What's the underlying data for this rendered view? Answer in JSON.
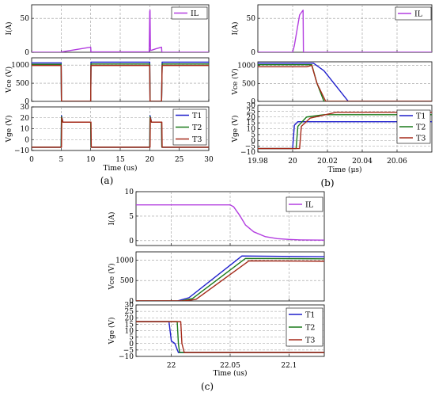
{
  "colors": {
    "IL": "#b33ee0",
    "T1": "#1f1fcc",
    "T2": "#1a7a1a",
    "T3": "#a52a1a",
    "grid": "#9a9a9a"
  },
  "chart_data": [
    {
      "type": "line",
      "caption": "(a)",
      "xlabel": "Time (us)",
      "xlim": [
        0,
        30
      ],
      "xticks": [
        0,
        5,
        10,
        15,
        20,
        25,
        30
      ],
      "grid": true,
      "panels": [
        {
          "ylabel": "I(A)",
          "ylim": [
            0,
            70
          ],
          "yticks": [
            0,
            50
          ],
          "legend": [
            "IL"
          ],
          "series": [
            {
              "name": "IL",
              "x": [
                0,
                5,
                5.05,
                10,
                10.05,
                19.9,
                20,
                20.05,
                20.12,
                20.3,
                21,
                22,
                22.05,
                30
              ],
              "y": [
                0,
                0,
                0.5,
                7.5,
                0.5,
                0.5,
                60,
                62,
                3,
                3,
                5,
                7.5,
                0,
                0
              ]
            }
          ]
        },
        {
          "ylabel": "Vce (V)",
          "ylim": [
            0,
            1200
          ],
          "yticks": [
            0,
            500,
            1000
          ],
          "series": [
            {
              "name": "T1",
              "x": [
                0,
                5,
                5.05,
                10,
                10.05,
                20,
                20.05,
                22,
                22.1,
                30
              ],
              "y": [
                1060,
                1060,
                0,
                0,
                1080,
                1080,
                0,
                0,
                1080,
                1080
              ]
            },
            {
              "name": "T2",
              "x": [
                0,
                5,
                5.05,
                10,
                10.05,
                20,
                20.05,
                22,
                22.1,
                30
              ],
              "y": [
                1020,
                1020,
                0,
                0,
                1030,
                1030,
                0,
                0,
                1030,
                1030
              ]
            },
            {
              "name": "T3",
              "x": [
                0,
                5,
                5.05,
                10,
                10.05,
                20,
                20.05,
                22,
                22.1,
                30
              ],
              "y": [
                990,
                990,
                0,
                0,
                990,
                990,
                0,
                0,
                990,
                990
              ]
            }
          ]
        },
        {
          "ylabel": "Vge (V)",
          "ylim": [
            -10,
            30
          ],
          "yticks": [
            -10,
            0,
            10,
            20,
            30
          ],
          "legend": [
            "T1",
            "T2",
            "T3"
          ],
          "series": [
            {
              "name": "T1",
              "x": [
                0,
                5,
                5.05,
                5.3,
                10,
                10.05,
                20,
                20.05,
                20.3,
                22,
                22.05,
                30
              ],
              "y": [
                -7,
                -7,
                22,
                16,
                16,
                -7,
                -7,
                22,
                16,
                16,
                -7,
                -7
              ]
            },
            {
              "name": "T2",
              "x": [
                0,
                5,
                5.05,
                5.3,
                10,
                10.05,
                20,
                20.05,
                20.3,
                22,
                22.05,
                30
              ],
              "y": [
                -7,
                -7,
                21,
                16,
                16,
                -7,
                -7,
                21,
                16,
                16,
                -7,
                -7
              ]
            },
            {
              "name": "T3",
              "x": [
                0,
                5.05,
                5.1,
                5.3,
                10.05,
                10.1,
                20.05,
                20.1,
                20.3,
                22.05,
                22.1,
                30
              ],
              "y": [
                -7,
                -7,
                20,
                16,
                16,
                -7,
                -7,
                20,
                16,
                16,
                -7,
                -7
              ]
            }
          ]
        }
      ]
    },
    {
      "type": "line",
      "caption": "(b)",
      "xlabel": "Time (μs)",
      "xlim": [
        19.98,
        20.08
      ],
      "xticks": [
        19.98,
        20,
        20.02,
        20.04,
        20.06
      ],
      "grid": true,
      "panels": [
        {
          "ylabel": "I(A)",
          "ylim": [
            0,
            70
          ],
          "yticks": [
            0,
            50
          ],
          "legend": [
            "IL"
          ],
          "series": [
            {
              "name": "IL",
              "x": [
                19.98,
                20.0,
                20.001,
                20.004,
                20.006,
                20.0062,
                20.08
              ],
              "y": [
                0,
                0,
                10,
                55,
                62,
                0,
                0
              ]
            }
          ]
        },
        {
          "ylabel": "Vce (V)",
          "ylim": [
            0,
            1100
          ],
          "yticks": [
            0,
            500,
            1000
          ],
          "series": [
            {
              "name": "T1",
              "x": [
                19.98,
                20.0,
                20.012,
                20.018,
                20.032,
                20.08
              ],
              "y": [
                1060,
                1060,
                1060,
                850,
                0,
                0
              ]
            },
            {
              "name": "T2",
              "x": [
                19.98,
                20.005,
                20.011,
                20.014,
                20.018,
                20.08
              ],
              "y": [
                1020,
                1020,
                1020,
                500,
                0,
                0
              ]
            },
            {
              "name": "T3",
              "x": [
                19.98,
                20.008,
                20.011,
                20.014,
                20.019,
                20.08
              ],
              "y": [
                960,
                960,
                1000,
                500,
                0,
                0
              ]
            }
          ]
        },
        {
          "ylabel": "Vge (V)",
          "ylim": [
            -10,
            30
          ],
          "yticks": [
            -10,
            -5,
            0,
            5,
            10,
            15,
            20,
            25,
            30
          ],
          "legend": [
            "T1",
            "T2",
            "T3"
          ],
          "series": [
            {
              "name": "T1",
              "x": [
                19.98,
                20.0,
                20.001,
                20.003,
                20.08
              ],
              "y": [
                -7,
                -7,
                13,
                16,
                16
              ]
            },
            {
              "name": "T2",
              "x": [
                19.98,
                20.002,
                20.003,
                20.008,
                20.018,
                20.08
              ],
              "y": [
                -7,
                -7,
                12,
                20,
                22,
                22
              ]
            },
            {
              "name": "T3",
              "x": [
                19.98,
                20.004,
                20.005,
                20.01,
                20.025,
                20.08
              ],
              "y": [
                -7,
                -7,
                12,
                19,
                24,
                24
              ]
            }
          ]
        }
      ]
    },
    {
      "type": "line",
      "caption": "(c)",
      "xlabel": "Time (us)",
      "xlim": [
        21.97,
        22.13
      ],
      "xticks": [
        22,
        22.05,
        22.1
      ],
      "grid": true,
      "panels": [
        {
          "ylabel": "I(A)",
          "ylim": [
            -1,
            10
          ],
          "yticks": [
            0,
            5,
            10
          ],
          "legend": [
            "IL"
          ],
          "series": [
            {
              "name": "IL",
              "x": [
                21.97,
                22.05,
                22.053,
                22.058,
                22.063,
                22.07,
                22.08,
                22.09,
                22.1,
                22.11,
                22.13
              ],
              "y": [
                7.3,
                7.3,
                6.9,
                5.2,
                3.2,
                1.8,
                0.8,
                0.4,
                0.25,
                0.15,
                0.1
              ]
            }
          ]
        },
        {
          "ylabel": "Vce (V)",
          "ylim": [
            0,
            1200
          ],
          "yticks": [
            0,
            500,
            1000
          ],
          "series": [
            {
              "name": "T1",
              "x": [
                21.97,
                22.005,
                22.015,
                22.06,
                22.13
              ],
              "y": [
                0,
                0,
                80,
                1100,
                1080
              ]
            },
            {
              "name": "T2",
              "x": [
                21.97,
                22.008,
                22.018,
                22.063,
                22.13
              ],
              "y": [
                0,
                0,
                60,
                1040,
                1030
              ]
            },
            {
              "name": "T3",
              "x": [
                21.97,
                22.011,
                22.021,
                22.066,
                22.13
              ],
              "y": [
                0,
                0,
                40,
                980,
                970
              ]
            }
          ]
        },
        {
          "ylabel": "Vge (V)",
          "ylim": [
            -10,
            30
          ],
          "yticks": [
            -10,
            -5,
            0,
            5,
            10,
            15,
            20,
            25,
            30
          ],
          "legend": [
            "T1",
            "T2",
            "T3"
          ],
          "series": [
            {
              "name": "T1",
              "x": [
                21.97,
                21.998,
                22.0,
                22.003,
                22.006,
                22.13
              ],
              "y": [
                17,
                17,
                2,
                0,
                -7,
                -7
              ]
            },
            {
              "name": "T2",
              "x": [
                21.97,
                22.005,
                22.006,
                22.007,
                22.13
              ],
              "y": [
                17,
                17,
                0,
                -7,
                -7
              ]
            },
            {
              "name": "T3",
              "x": [
                21.97,
                22.008,
                22.009,
                22.011,
                22.13
              ],
              "y": [
                17,
                17,
                0,
                -7,
                -7
              ]
            }
          ]
        }
      ]
    }
  ]
}
